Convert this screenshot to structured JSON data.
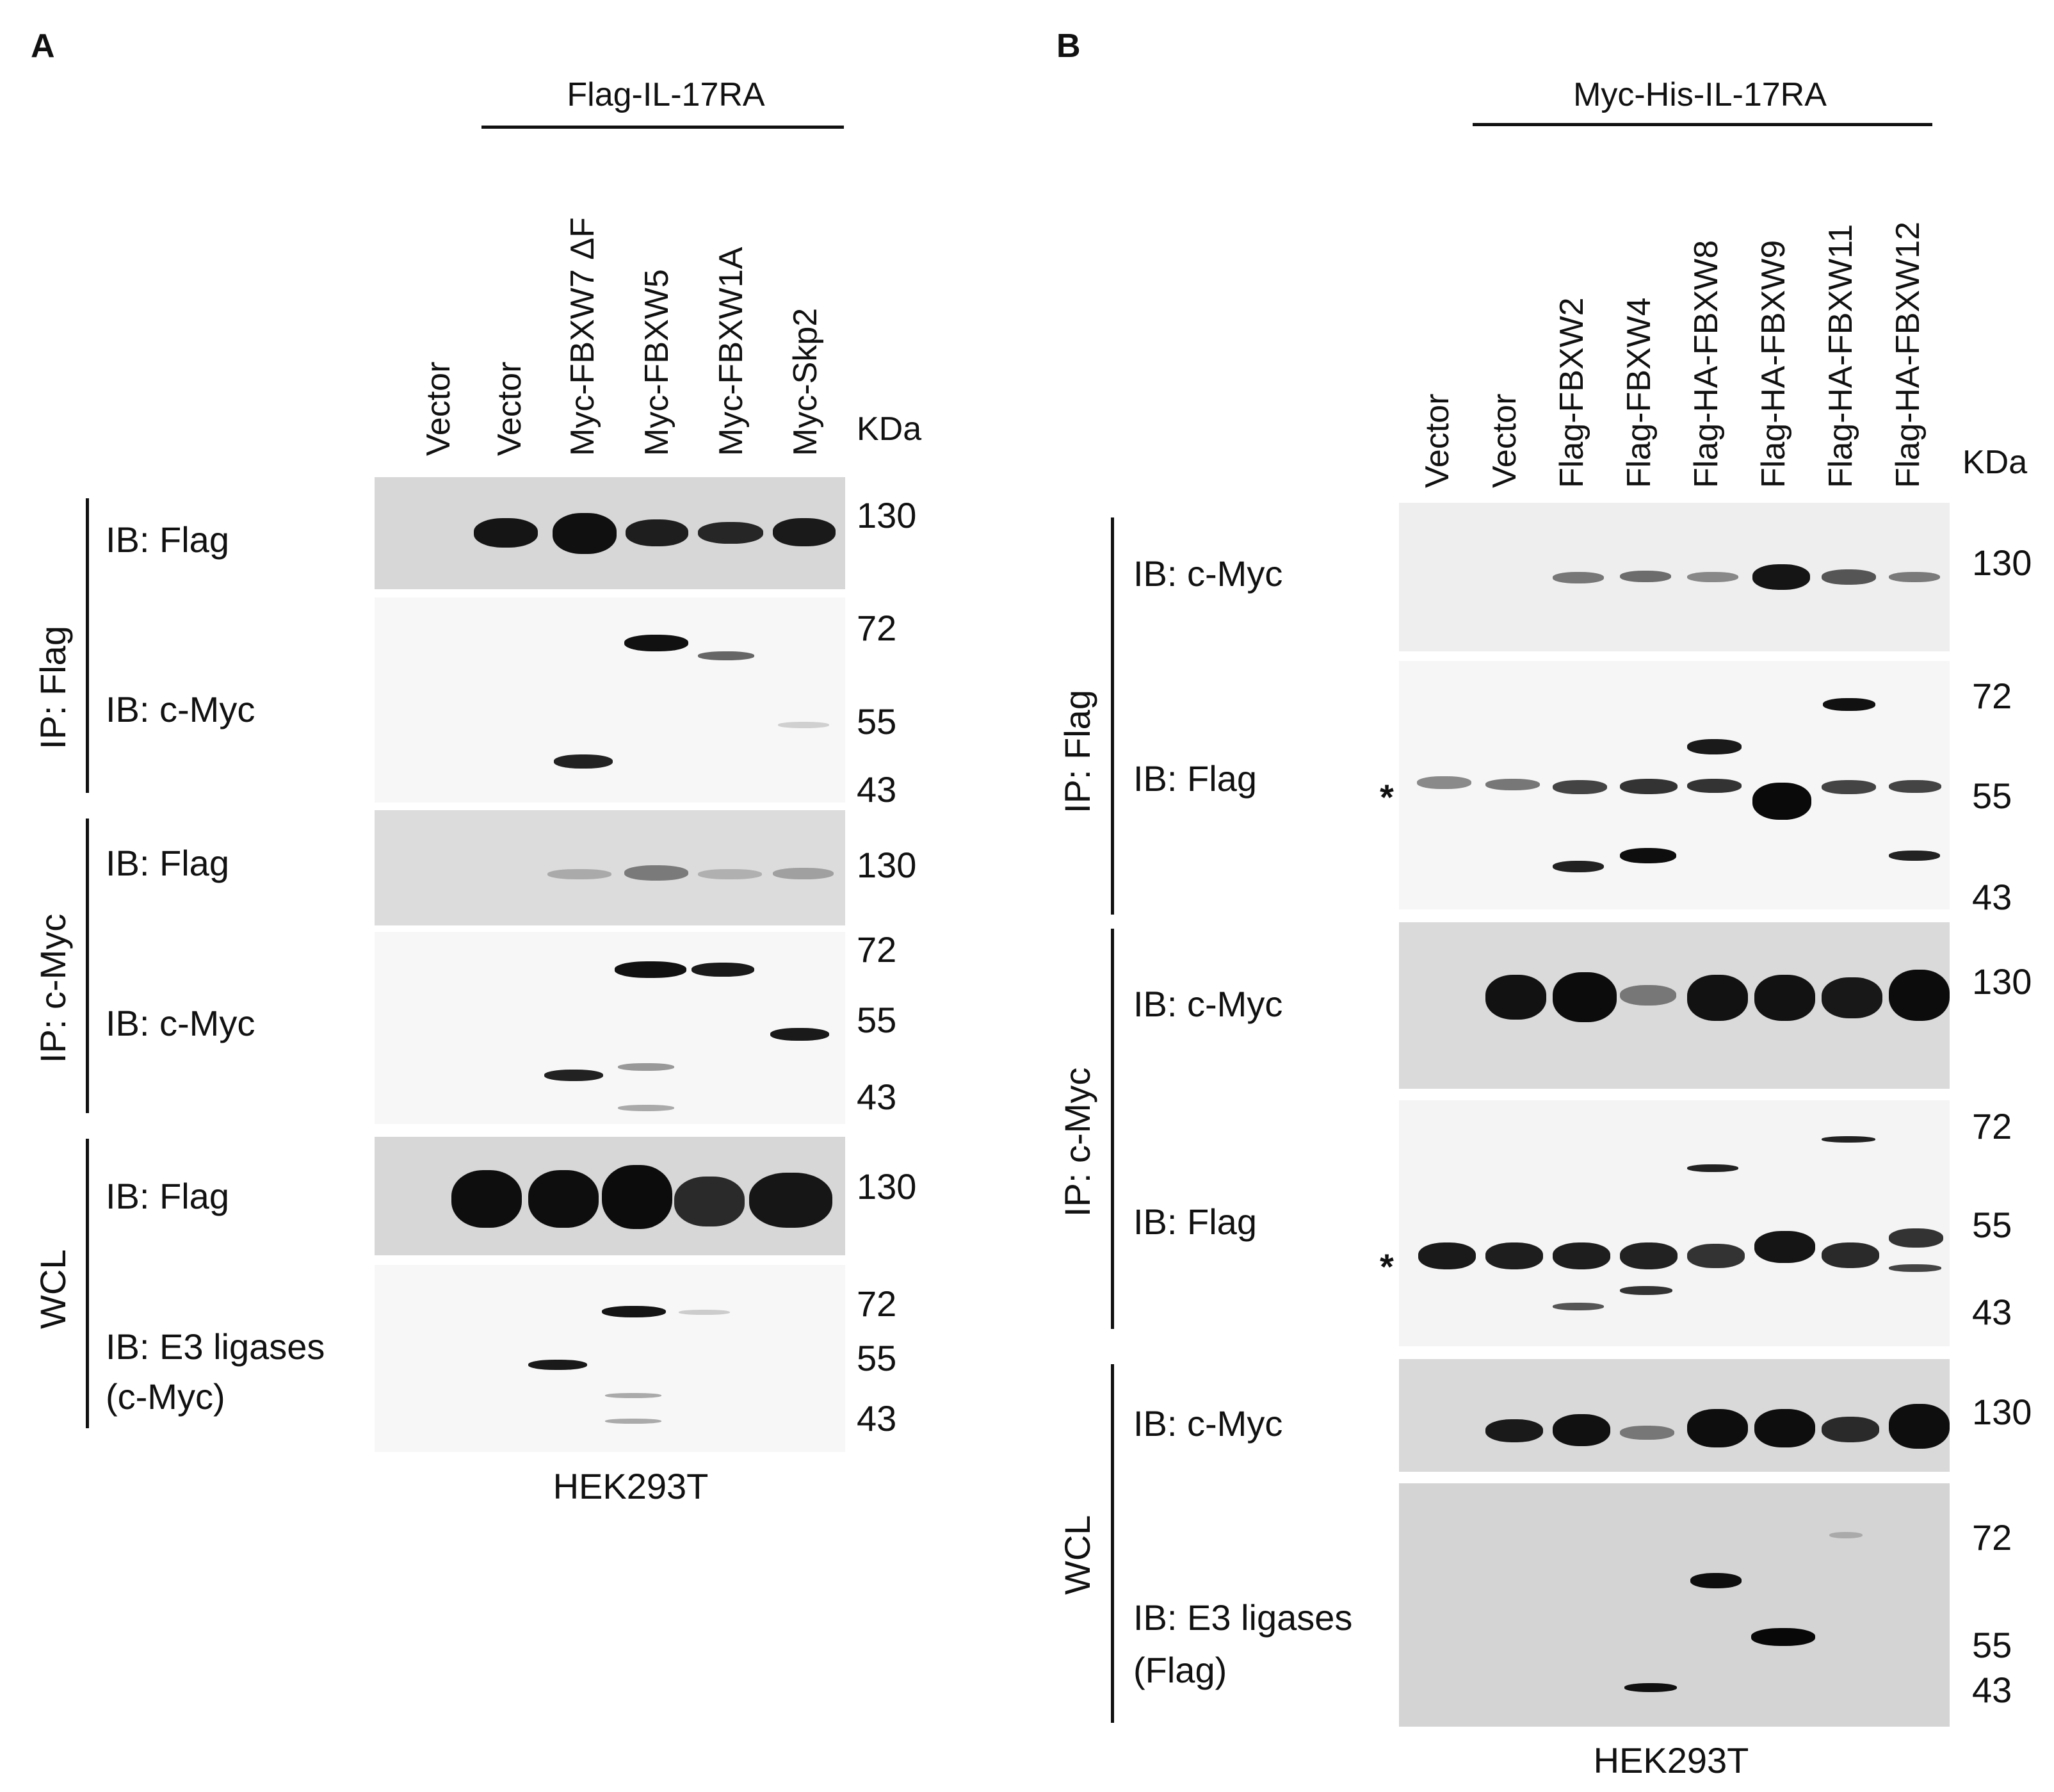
{
  "panel_a": {
    "label": "A",
    "construct_header": "Flag-IL-17RA",
    "lanes": [
      "Vector",
      "Vector",
      "Myc-FBXW7 ΔF",
      "Myc-FBXW5",
      "Myc-FBXW1A",
      "Myc-Skp2"
    ],
    "kda_label": "KDa",
    "groups": [
      "IP: Flag",
      "IP: c-Myc",
      "WCL"
    ],
    "blots": [
      {
        "ib": "IB: Flag",
        "markers": [
          "130"
        ]
      },
      {
        "ib": "IB: c-Myc",
        "markers": [
          "72",
          "55",
          "43"
        ]
      },
      {
        "ib": "IB: Flag",
        "markers": [
          "130"
        ]
      },
      {
        "ib": "IB: c-Myc",
        "markers": [
          "72",
          "55",
          "43"
        ]
      },
      {
        "ib": "IB: Flag",
        "markers": [
          "130"
        ]
      },
      {
        "ib": "IB: E3 ligases",
        "ib2": "(c-Myc)",
        "markers": [
          "72",
          "55",
          "43"
        ]
      }
    ],
    "cell_line": "HEK293T"
  },
  "panel_b": {
    "label": "B",
    "construct_header": "Myc-His-IL-17RA",
    "lanes": [
      "Vector",
      "Vector",
      "Flag-FBXW2",
      "Flag-FBXW4",
      "Flag-HA-FBXW8",
      "Flag-HA-FBXW9",
      "Flag-HA-FBXW11",
      "Flag-HA-FBXW12"
    ],
    "kda_label": "KDa",
    "groups": [
      "IP: Flag",
      "IP: c-Myc",
      "WCL"
    ],
    "blots": [
      {
        "ib": "IB: c-Myc",
        "markers": [
          "130"
        ]
      },
      {
        "ib": "IB: Flag",
        "markers": [
          "72",
          "55",
          "43"
        ],
        "asterisk": "*"
      },
      {
        "ib": "IB: c-Myc",
        "markers": [
          "130"
        ]
      },
      {
        "ib": "IB: Flag",
        "markers": [
          "72",
          "55",
          "43"
        ],
        "asterisk": "*"
      },
      {
        "ib": "IB: c-Myc",
        "markers": [
          "130"
        ]
      },
      {
        "ib": "IB: E3 ligases",
        "ib2": "(Flag)",
        "markers": [
          "72",
          "55",
          "43"
        ]
      }
    ],
    "cell_line": "HEK293T"
  }
}
